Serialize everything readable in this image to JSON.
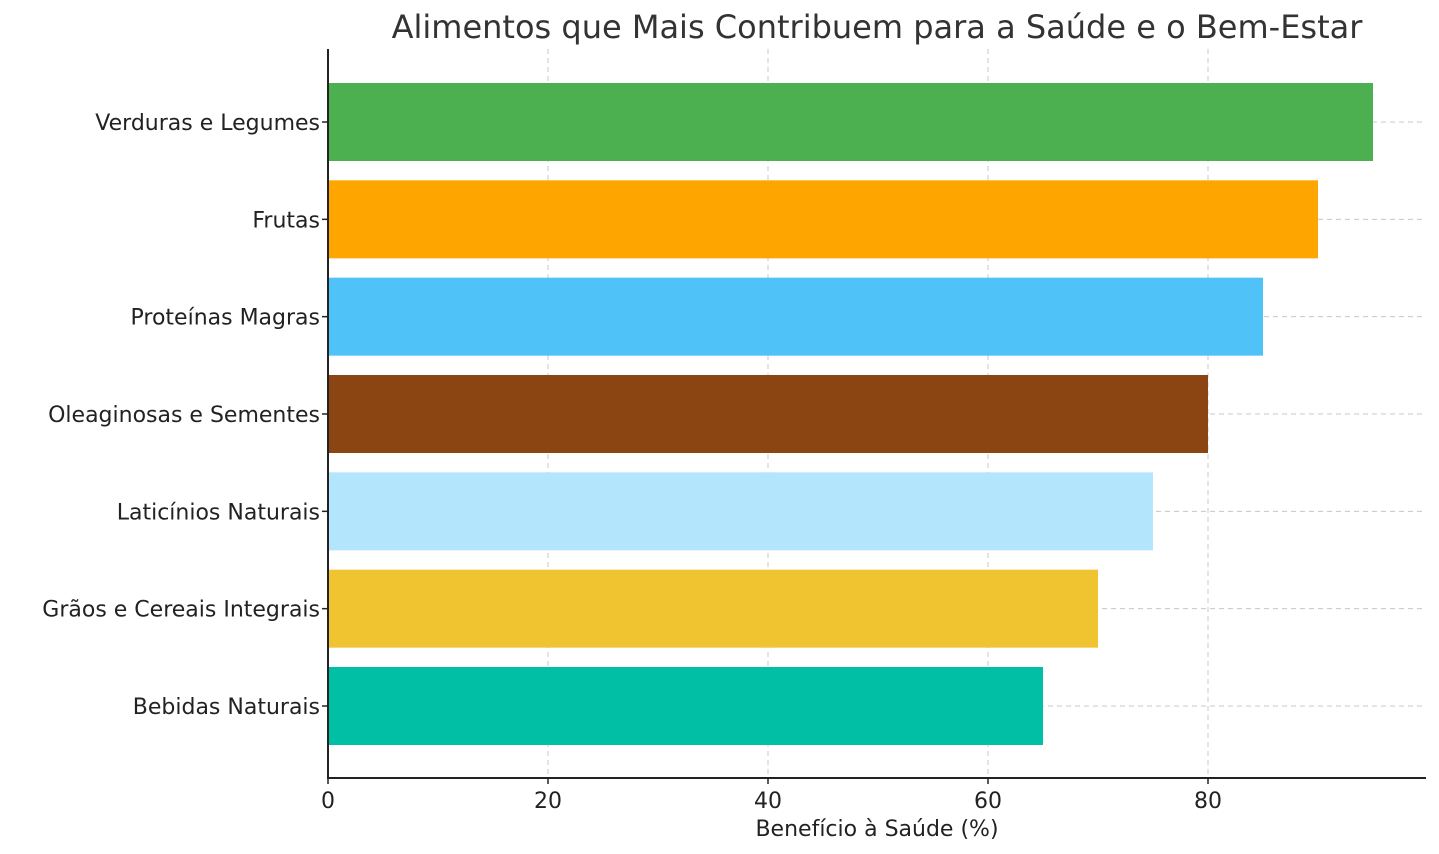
{
  "chart_data": {
    "type": "bar",
    "orientation": "horizontal",
    "title": "Alimentos que Mais Contribuem para a Saúde e o Bem-Estar",
    "xlabel": "Benefício à Saúde (%)",
    "ylabel": "",
    "xlim": [
      0,
      100
    ],
    "xticks": [
      0,
      20,
      40,
      60,
      80
    ],
    "grid": true,
    "categories": [
      "Verduras e Legumes",
      "Frutas",
      "Proteínas Magras",
      "Oleaginosas e Sementes",
      "Laticínios Naturais",
      "Grãos e Cereais Integrais",
      "Bebidas Naturais"
    ],
    "values": [
      95,
      90,
      85,
      80,
      75,
      70,
      65
    ],
    "colors": [
      "#4CAF50",
      "#FFA500",
      "#4FC3F7",
      "#8B4513",
      "#B3E5FC",
      "#F0C430",
      "#00BFA5"
    ]
  }
}
